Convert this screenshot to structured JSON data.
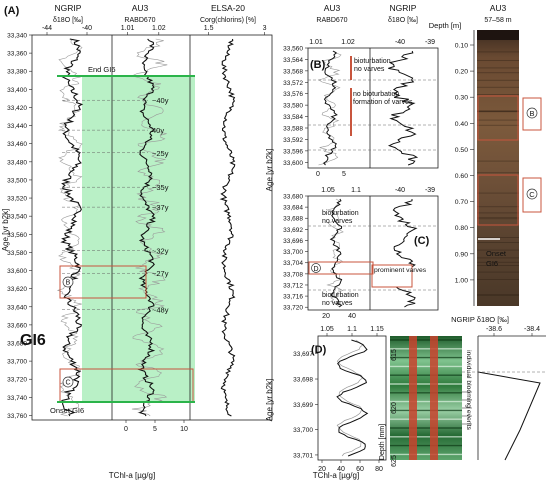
{
  "figure": {
    "panels": [
      "(A)",
      "(B)",
      "(C)",
      "(D)"
    ]
  },
  "chart_data": [
    {
      "panel": "(A)",
      "type": "line",
      "ylabel": "Age [yr b2k]",
      "y_ticks": [
        33340,
        33360,
        33380,
        33400,
        33420,
        33440,
        33460,
        33480,
        33500,
        33520,
        33540,
        33560,
        33580,
        33600,
        33620,
        33640,
        33660,
        33680,
        33700,
        33720,
        33740,
        33760
      ],
      "ylim": [
        33340,
        33765
      ],
      "tracks": [
        {
          "name": "NGRIP",
          "unit": "δ18O [‰]",
          "ticks": [
            -44,
            -40
          ],
          "xlim": [
            -45.5,
            -37.5
          ]
        },
        {
          "name": "AU3",
          "unit": "RABD670",
          "ticks": [
            1.01,
            1.02
          ],
          "xlim": [
            1.005,
            1.03
          ],
          "bottom_ticks": [
            0,
            5,
            10
          ],
          "bottom_label": "TChl-a [µg/g]"
        },
        {
          "name": "ELSA-20",
          "unit": "Corg(chlorins) [%]",
          "ticks": [
            1.5,
            3
          ],
          "xlim": [
            1.0,
            3.2
          ]
        }
      ],
      "interval_label": "GI6",
      "event_labels": [
        {
          "label": "End GI6",
          "age": 33363
        },
        {
          "label": "Onset GI6",
          "age": 33741
        }
      ],
      "cycle_labels": [
        {
          "label": "~40y",
          "age": 33412
        },
        {
          "label": "40y",
          "age": 33445
        },
        {
          "label": "~25y",
          "age": 33470
        },
        {
          "label": "~35y",
          "age": 33508
        },
        {
          "label": "~37y",
          "age": 33530
        },
        {
          "label": "~32y",
          "age": 33578
        },
        {
          "label": "~27y",
          "age": 33603
        },
        {
          "label": "~48y",
          "age": 33643
        }
      ],
      "box_labels": [
        {
          "label": "(B)",
          "age_range": [
            33560,
            33600
          ]
        },
        {
          "label": "(C)",
          "age_range": [
            33680,
            33720
          ]
        }
      ],
      "green_shade_range": [
        33360,
        33740
      ]
    },
    {
      "panel": "(B)",
      "type": "line",
      "ylabel": "Age [yr b2k]",
      "y_ticks": [
        33560,
        33564,
        33568,
        33572,
        33576,
        33580,
        33584,
        33588,
        33592,
        33596,
        33600
      ],
      "ylim": [
        33560,
        33602
      ],
      "tracks": [
        {
          "name": "AU3",
          "unit": "RABD670",
          "ticks": [
            1.01,
            1.02
          ],
          "bottom_ticks": [
            0,
            5
          ]
        },
        {
          "name": "NGRIP",
          "unit": "δ18O [‰]",
          "ticks": [
            -40,
            -39
          ]
        }
      ],
      "annotations": [
        "bioturbation",
        "no varves",
        "no bioturbation",
        "formation of varves"
      ]
    },
    {
      "panel": "(C)",
      "type": "line",
      "y_ticks": [
        33680,
        33684,
        33688,
        33692,
        33696,
        33700,
        33704,
        33708,
        33712,
        33716,
        33720
      ],
      "ylim": [
        33680,
        33721
      ],
      "tracks": [
        {
          "name": "AU3",
          "ticks": [
            1.05,
            1.1
          ],
          "bottom_ticks": [
            20,
            40
          ]
        },
        {
          "name": "NGRIP",
          "ticks": [
            -40,
            -39
          ]
        }
      ],
      "annotations": [
        "bioturbation",
        "no varves",
        "prominent varves",
        "bioturbation",
        "no varves"
      ],
      "marker": "D"
    },
    {
      "panel": "(D)",
      "type": "line",
      "ylabel": "Age [yr b2k]",
      "y_ticks": [
        33697,
        33698,
        33699,
        33700,
        33701
      ],
      "ylim": [
        33696.3,
        33701.2
      ],
      "tracks": [
        {
          "ticks": [
            1.05,
            1.1,
            1.15
          ],
          "bottom_ticks": [
            20,
            40,
            60,
            80
          ],
          "bottom_label": "TChl-a [µg/g]"
        }
      ],
      "depth_label": "Depth [mm]",
      "depth_ticks": [
        615,
        620,
        625
      ],
      "right_title": "NGRIP δ18O [‰]",
      "right_ticks": [
        -38.6,
        -38.4
      ],
      "annotation": "individual blooming events"
    },
    {
      "panel": "core",
      "type": "table",
      "title": "AU3",
      "subtitle": "57–58 m",
      "ylabel": "Depth [m]",
      "depth_ticks": [
        "0.10",
        "0.20",
        "0.30",
        "0.40",
        "0.50",
        "0.60",
        "0.70",
        "0.80",
        "0.90",
        "1.00"
      ],
      "markers": [
        "B",
        "C"
      ],
      "onset_label": "Onset GI6"
    }
  ]
}
